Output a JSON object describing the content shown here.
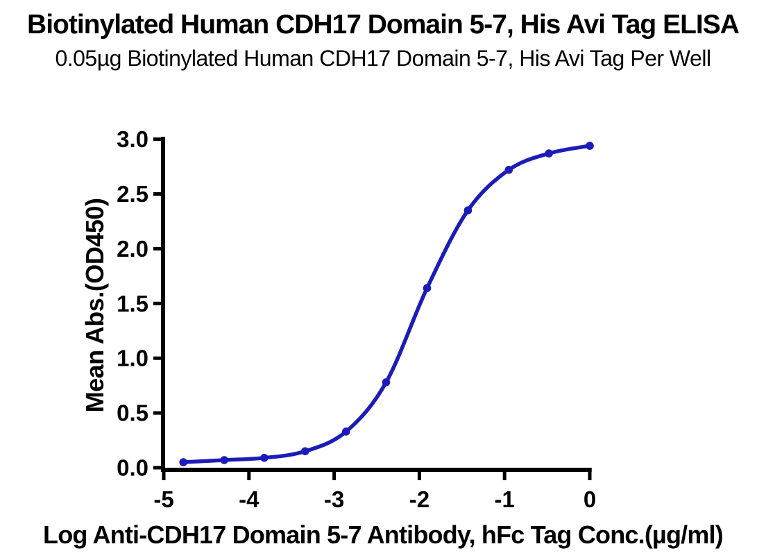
{
  "header": {
    "title": "Biotinylated Human CDH17 Domain 5-7, His Avi Tag ELISA",
    "subtitle": "0.05µg Biotinylated Human CDH17 Domain 5-7, His Avi Tag Per Well"
  },
  "colors": {
    "curve": "#1c1cb8",
    "axis": "#000000",
    "background": "#ffffff"
  },
  "chart_data": {
    "type": "line",
    "title": "Biotinylated Human CDH17 Domain 5-7, His Avi Tag ELISA",
    "subtitle": "0.05µg Biotinylated Human CDH17 Domain 5-7, His Avi Tag Per Well",
    "xlabel": "Log Anti-CDH17 Domain 5-7 Antibody, hFc Tag Conc.(µg/ml)",
    "ylabel": "Mean Abs.(OD450)",
    "xlim": [
      -5,
      0
    ],
    "ylim": [
      0,
      3
    ],
    "x_ticks": [
      -5,
      -4,
      -3,
      -2,
      -1,
      0
    ],
    "y_ticks": [
      0.0,
      0.5,
      1.0,
      1.5,
      2.0,
      2.5,
      3.0
    ],
    "grid": false,
    "legend_position": "none",
    "series": [
      {
        "name": "Anti-CDH17 Domain 5-7 Antibody, hFc Tag",
        "color": "#1c1cb8",
        "marker": "circle",
        "curve": "sigmoid-4PL",
        "x": [
          -4.77,
          -4.29,
          -3.82,
          -3.34,
          -2.86,
          -2.39,
          -1.91,
          -1.43,
          -0.95,
          -0.48,
          0
        ],
        "y": [
          0.05,
          0.07,
          0.09,
          0.15,
          0.33,
          0.78,
          1.64,
          2.35,
          2.72,
          2.87,
          2.94
        ]
      }
    ]
  }
}
